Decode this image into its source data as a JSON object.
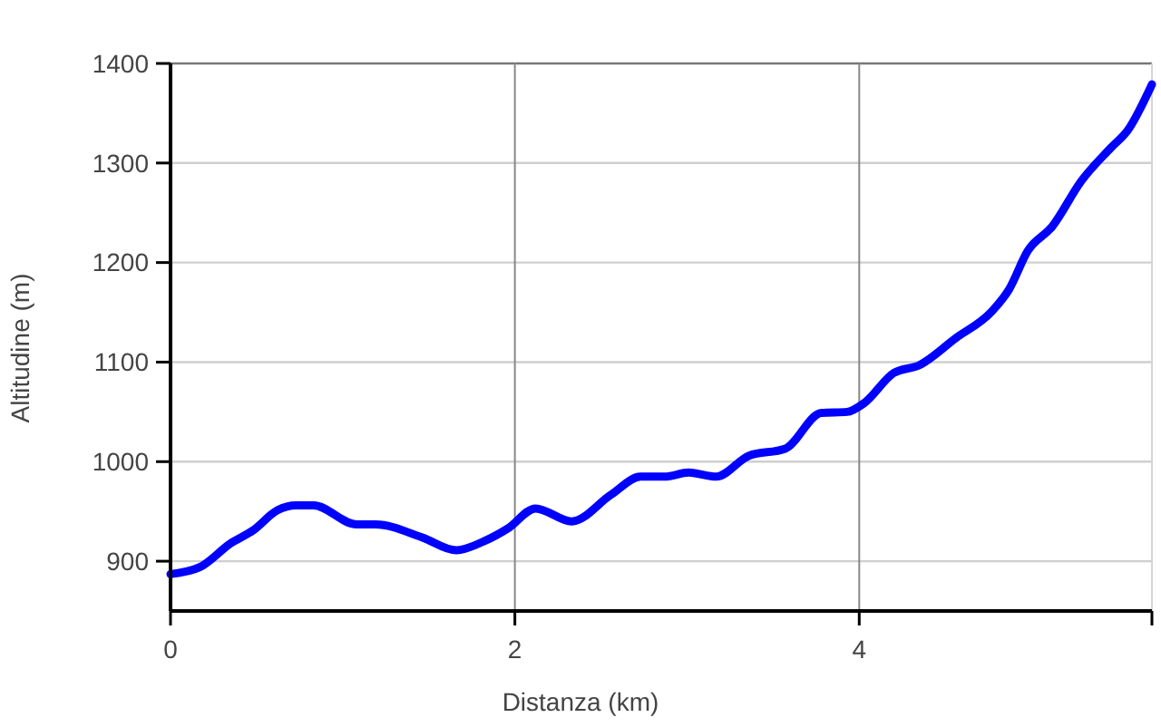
{
  "chart_data": {
    "type": "line",
    "xlabel": "Distanza (km)",
    "ylabel": "Altitudine (m)",
    "x": [
      0,
      0.17,
      0.35,
      0.48,
      0.62,
      0.73,
      0.83,
      1.08,
      1.19,
      1.46,
      1.66,
      1.82,
      1.96,
      2.12,
      2.33,
      2.56,
      2.73,
      2.87,
      3.01,
      3.17,
      3.36,
      3.57,
      3.78,
      3.93,
      4.03,
      4.2,
      4.35,
      4.56,
      4.77,
      4.87,
      4.98,
      5.12,
      5.29,
      5.46,
      5.56,
      5.7
    ],
    "series": [
      {
        "color": "#0000ff",
        "values": [
          887,
          894,
          918,
          931,
          951,
          956,
          956,
          937,
          937,
          924,
          911,
          920,
          933,
          953,
          940,
          967,
          985,
          985,
          989,
          985,
          1006,
          1013,
          1049,
          1050,
          1059,
          1089,
          1097,
          1124,
          1151,
          1173,
          1212,
          1236,
          1282,
          1315,
          1333,
          1379
        ]
      }
    ],
    "xlim": [
      0,
      5.7
    ],
    "xticks": [
      0,
      2,
      4,
      {
        "value": 5.7,
        "label": null
      }
    ],
    "ylim": [
      850,
      1400
    ],
    "yticks": [
      900,
      1000,
      1100,
      1200,
      1300,
      1400
    ],
    "grid": true,
    "marker": "none",
    "line_style": "solid"
  }
}
